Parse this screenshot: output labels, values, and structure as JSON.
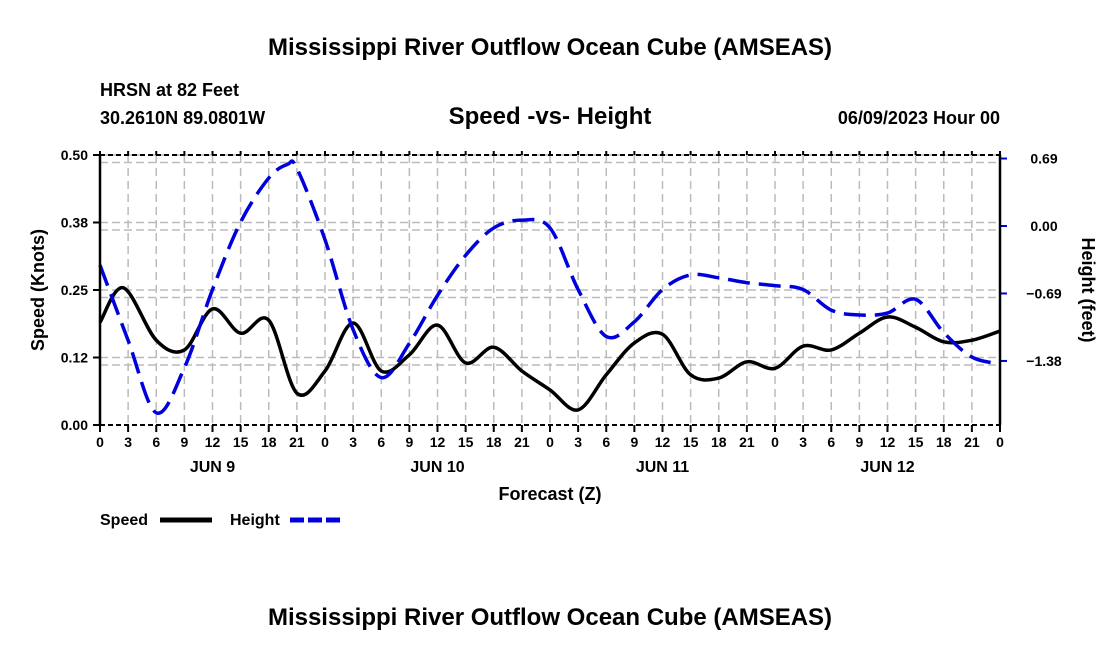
{
  "header": {
    "main_title": "Mississippi River Outflow Ocean Cube (AMSEAS)",
    "station": "HRSN at 82 Feet",
    "coords": "30.2610N  89.0801W",
    "date": "06/09/2023 Hour 00",
    "footer_title": "Mississippi River Outflow Ocean Cube (AMSEAS)"
  },
  "chart_data": {
    "type": "line",
    "title": "Speed -vs- Height",
    "xlabel": "Forecast (Z)",
    "ylabel": "Speed (Knots)",
    "y2label": "Height (feet)",
    "xlim": [
      0,
      96
    ],
    "ylim": [
      0,
      0.5
    ],
    "y2lim": [
      -2.035,
      0.726
    ],
    "x_tick_labels": [
      "0",
      "3",
      "6",
      "9",
      "12",
      "15",
      "18",
      "21",
      "0",
      "3",
      "6",
      "9",
      "12",
      "15",
      "18",
      "21",
      "0",
      "3",
      "6",
      "9",
      "12",
      "15",
      "18",
      "21",
      "0",
      "3",
      "6",
      "9",
      "12",
      "15",
      "18",
      "21",
      "0"
    ],
    "day_labels": [
      {
        "hour": 12,
        "label": "JUN 9"
      },
      {
        "hour": 36,
        "label": "JUN 10"
      },
      {
        "hour": 60,
        "label": "JUN 11"
      },
      {
        "hour": 84,
        "label": "JUN 12"
      }
    ],
    "y_ticks": [
      {
        "value": 0,
        "label": "0.00"
      },
      {
        "value": 0.125,
        "label": "0.12"
      },
      {
        "value": 0.25,
        "label": "0.25"
      },
      {
        "value": 0.375,
        "label": "0.38"
      },
      {
        "value": 0.5,
        "label": "0.50"
      }
    ],
    "y2_ticks": [
      {
        "value": 0.69,
        "label": "0.69"
      },
      {
        "value": 0,
        "label": "0.00"
      },
      {
        "value": -0.69,
        "label": "−0.69"
      },
      {
        "value": -1.38,
        "label": "−1.38"
      }
    ],
    "grid": true,
    "legend_position": "bottom-left",
    "series": [
      {
        "name": "Speed",
        "axis": "left",
        "color": "#000000",
        "dash": "solid",
        "x": [
          0,
          2.5,
          6,
          9,
          12,
          15,
          18,
          21,
          24,
          27,
          30,
          33,
          36,
          39,
          42,
          45,
          48,
          51,
          54,
          57,
          60,
          63,
          66,
          69,
          72,
          75,
          78,
          81,
          84,
          87,
          90,
          93,
          96
        ],
        "y": [
          0.19,
          0.254,
          0.157,
          0.139,
          0.215,
          0.17,
          0.194,
          0.059,
          0.1,
          0.189,
          0.1,
          0.13,
          0.185,
          0.115,
          0.144,
          0.1,
          0.065,
          0.028,
          0.093,
          0.152,
          0.168,
          0.093,
          0.087,
          0.117,
          0.105,
          0.146,
          0.139,
          0.17,
          0.2,
          0.181,
          0.154,
          0.157,
          0.174
        ]
      },
      {
        "name": "Height",
        "axis": "right",
        "color": "#0000dd",
        "dash": "dashed",
        "x": [
          0,
          3,
          6,
          9,
          12,
          15,
          18,
          20,
          21,
          24,
          27,
          30,
          33,
          36,
          39,
          42,
          45,
          48,
          51,
          54,
          57,
          60,
          63,
          66,
          69,
          72,
          75,
          78,
          81,
          84,
          87,
          90,
          93,
          96
        ],
        "y": [
          -0.4,
          -1.17,
          -1.91,
          -1.45,
          -0.65,
          0.04,
          0.49,
          0.63,
          0.59,
          -0.14,
          -1.06,
          -1.55,
          -1.2,
          -0.71,
          -0.3,
          -0.02,
          0.06,
          -0.02,
          -0.65,
          -1.13,
          -0.98,
          -0.65,
          -0.5,
          -0.53,
          -0.58,
          -0.61,
          -0.65,
          -0.86,
          -0.91,
          -0.89,
          -0.75,
          -1.09,
          -1.34,
          -1.41
        ]
      }
    ]
  }
}
